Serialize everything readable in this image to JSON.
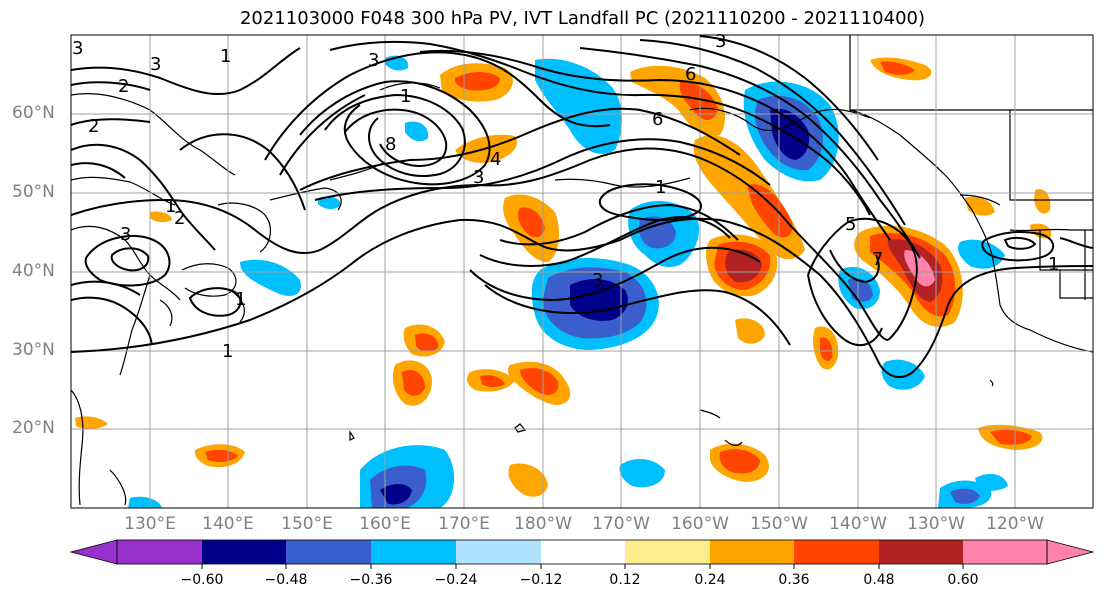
{
  "title": "2021103000 F048 300 hPa PV, IVT Landfall PC (2021110200 - 2021110400)",
  "lat_labels": [
    "60°N",
    "50°N",
    "40°N",
    "30°N",
    "20°N"
  ],
  "lon_labels": [
    "130°E",
    "140°E",
    "150°E",
    "160°E",
    "170°E",
    "180°W",
    "170°W",
    "160°W",
    "150°W",
    "140°W",
    "130°W",
    "120°W"
  ],
  "contour_labels": [
    "3",
    "2",
    "3",
    "1",
    "3",
    "2",
    "1",
    "3",
    "1",
    "6",
    "8",
    "3",
    "4",
    "1",
    "3",
    "6",
    "1",
    "7",
    "5",
    "1",
    "1",
    "3",
    "2"
  ],
  "colorbar": {
    "tick_labels": [
      "−0.60",
      "−0.48",
      "−0.36",
      "−0.24",
      "−0.12",
      "0.12",
      "0.24",
      "0.36",
      "0.48",
      "0.60"
    ],
    "colors": [
      "#9932cc",
      "#00008b",
      "#3a5fcd",
      "#00bfff",
      "#b0e2ff",
      "#ffffff",
      "#ffec8b",
      "#ffa500",
      "#ff4500",
      "#b22222",
      "#ff82ab"
    ]
  }
}
